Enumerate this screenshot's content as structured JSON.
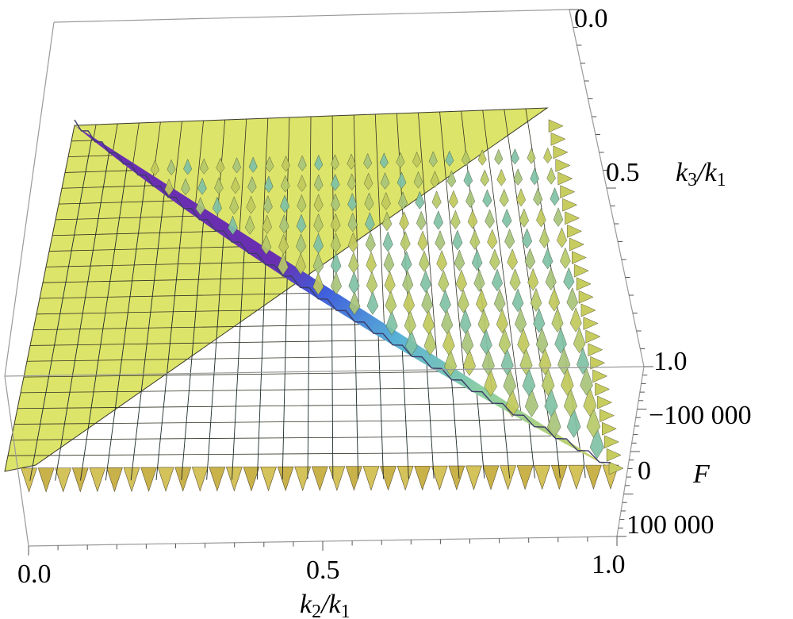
{
  "chart_data": {
    "type": "surface3d",
    "title": "",
    "x_axis": {
      "label_var": "k",
      "label_sub": "2",
      "label_slash": "/",
      "label_var2": "k",
      "label_sub2": "1",
      "range": [
        0.0,
        1.0
      ],
      "ticks": [
        "0.0",
        "0.5",
        "1.0"
      ]
    },
    "y_axis": {
      "label_var": "k",
      "label_sub": "3",
      "label_slash": "/",
      "label_var2": "k",
      "label_sub2": "1",
      "range": [
        0.0,
        1.0
      ],
      "ticks": [
        "0.0",
        "0.5",
        "1.0"
      ]
    },
    "z_axis": {
      "label": "F",
      "range": [
        100000,
        -150000
      ],
      "ticks": [
        "−100 000",
        "0",
        "100 000"
      ]
    },
    "surface": {
      "domain": "k2 + k3 >= 1 (triangle), flat plane outside",
      "oscillation": "strongly oscillating spikes along k2 and k3",
      "colormap": [
        "#e2e86a",
        "#8fd3a0",
        "#5fb0d8",
        "#3a5fd8",
        "#6a2fb0"
      ],
      "flat_color": "#dde46a"
    }
  }
}
